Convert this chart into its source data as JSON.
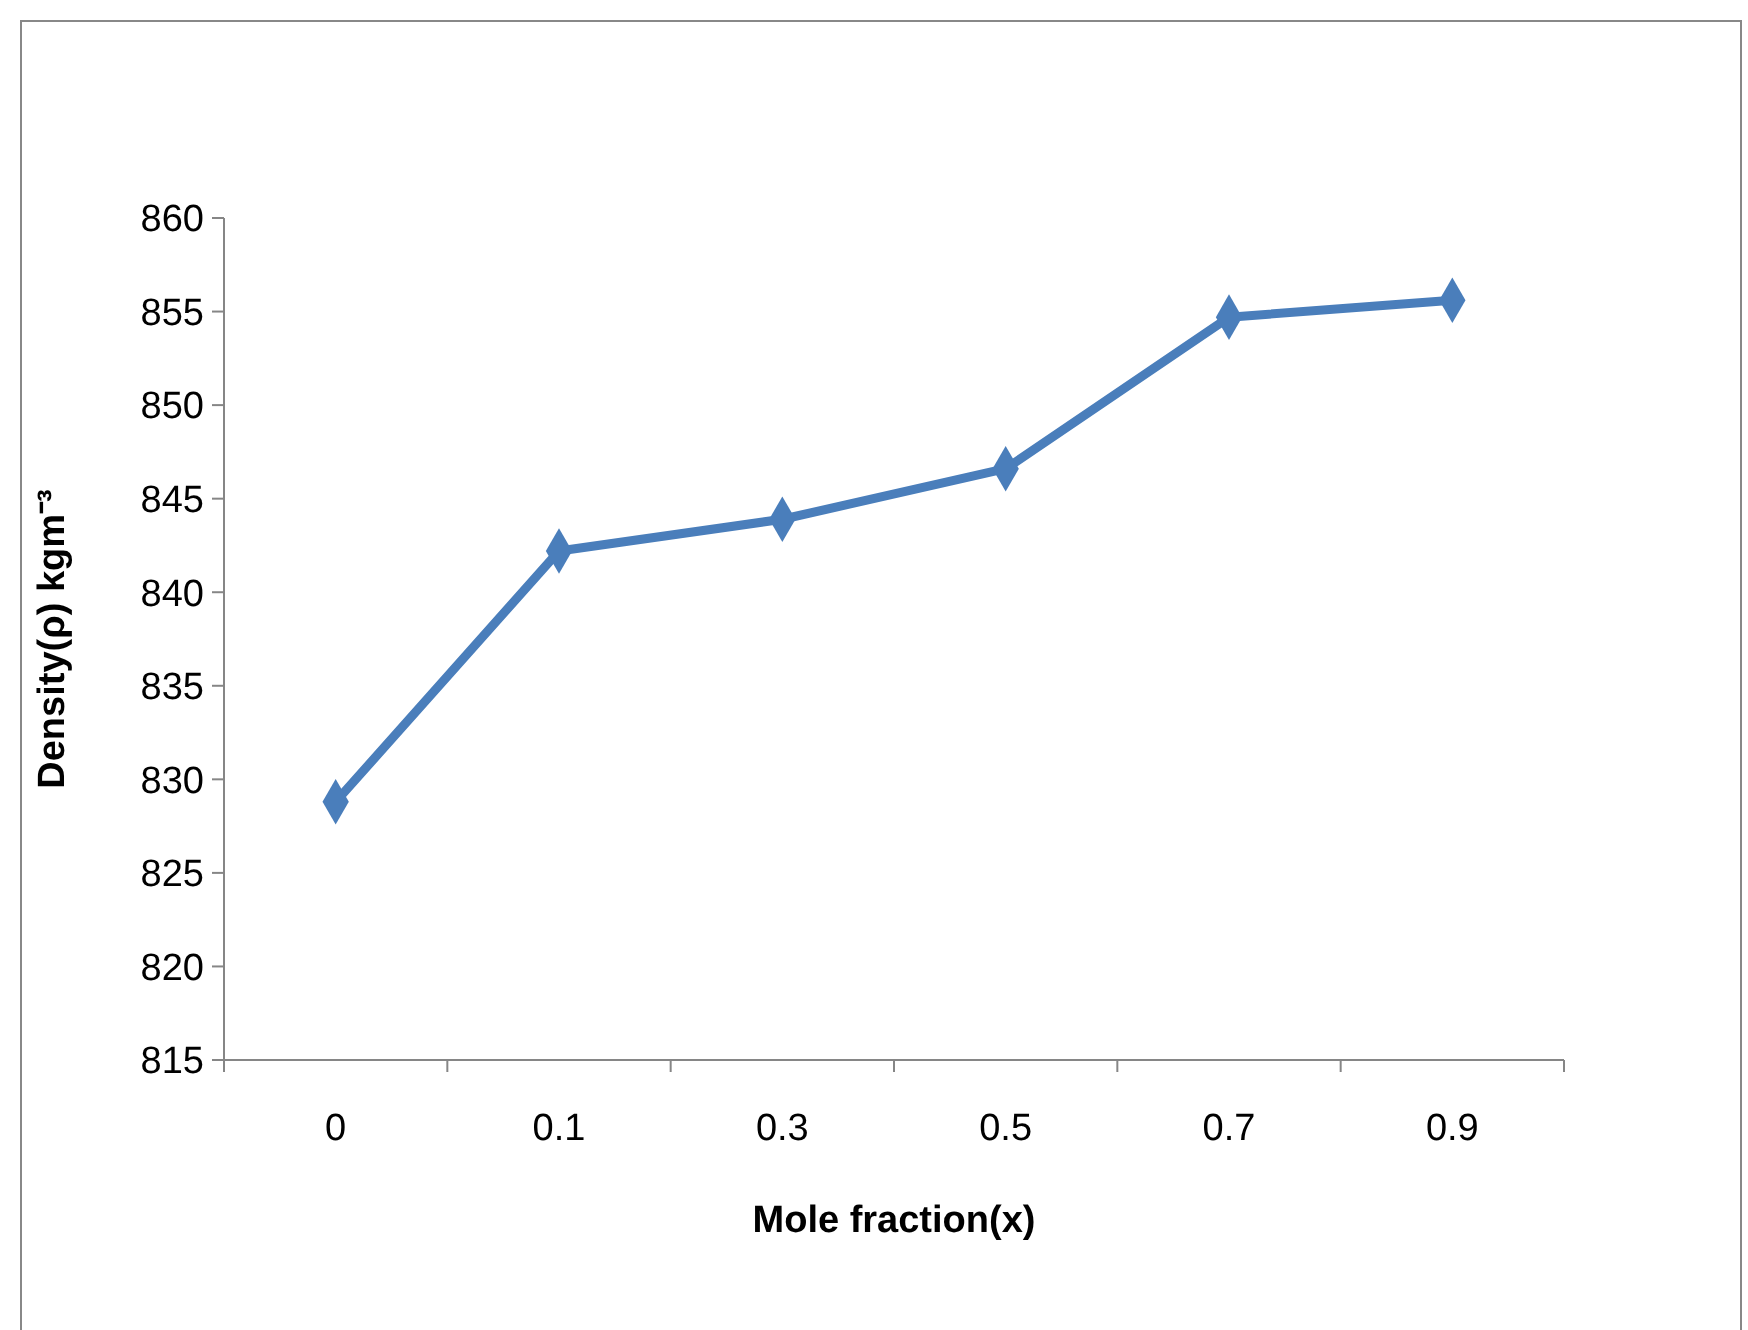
{
  "chart_data": {
    "type": "line",
    "xlabel": "Mole fraction(x)",
    "ylabel": "Density(ρ) kgm⁻³",
    "categories": [
      "0",
      "0.1",
      "0.3",
      "0.5",
      "0.7",
      "0.9"
    ],
    "series": [
      {
        "color": "#4a7ebb",
        "values": [
          828.8,
          842.2,
          843.9,
          846.6,
          854.7,
          855.6
        ]
      }
    ],
    "ylim": [
      815,
      860
    ],
    "yticks": [
      815,
      820,
      825,
      830,
      835,
      840,
      845,
      850,
      855,
      860
    ],
    "grid": false,
    "marker": "diamond",
    "line_style": "solid"
  }
}
